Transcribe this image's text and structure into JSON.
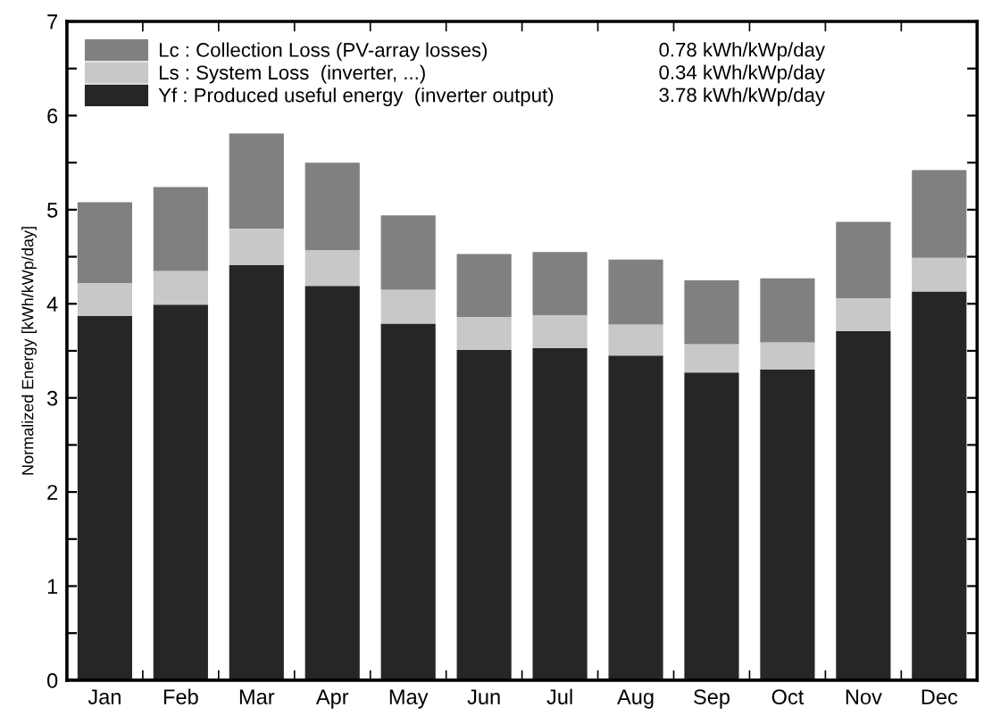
{
  "chart_data": {
    "type": "bar",
    "stacked": true,
    "ylabel": "Normalized Energy [kWh/kWp/day]",
    "categories": [
      "Jan",
      "Feb",
      "Mar",
      "Apr",
      "May",
      "Jun",
      "Jul",
      "Aug",
      "Sep",
      "Oct",
      "Nov",
      "Dec"
    ],
    "series": [
      {
        "name": "Yf : Produced useful energy  (inverter output)",
        "color": "#262626",
        "values": [
          3.87,
          3.99,
          4.41,
          4.19,
          3.79,
          3.51,
          3.53,
          3.45,
          3.27,
          3.3,
          3.71,
          4.13
        ]
      },
      {
        "name": "Ls : System Loss  (inverter, ...)",
        "color": "#c8c8c8",
        "values": [
          0.35,
          0.36,
          0.39,
          0.38,
          0.36,
          0.35,
          0.35,
          0.33,
          0.3,
          0.29,
          0.35,
          0.36
        ]
      },
      {
        "name": "Lc : Collection Loss (PV-array losses)",
        "color": "#808080",
        "values": [
          0.86,
          0.89,
          1.01,
          0.93,
          0.79,
          0.67,
          0.67,
          0.69,
          0.68,
          0.68,
          0.81,
          0.93
        ]
      }
    ],
    "annotations": [
      "3.78 kWh/kWp/day",
      "0.34 kWh/kWp/day",
      "0.78 kWh/kWp/day"
    ],
    "ylim": [
      0,
      7
    ],
    "yticks": [
      0,
      {
        "value": 0.5,
        "label": null
      },
      1,
      {
        "value": 1.5,
        "label": null
      },
      2,
      {
        "value": 2.5,
        "label": null
      },
      3,
      {
        "value": 3.5,
        "label": null
      },
      4,
      {
        "value": 4.5,
        "label": null
      },
      5,
      {
        "value": 5.5,
        "label": null
      },
      6,
      {
        "value": 6.5,
        "label": null
      },
      7
    ],
    "grid": false,
    "legend": "top left"
  }
}
